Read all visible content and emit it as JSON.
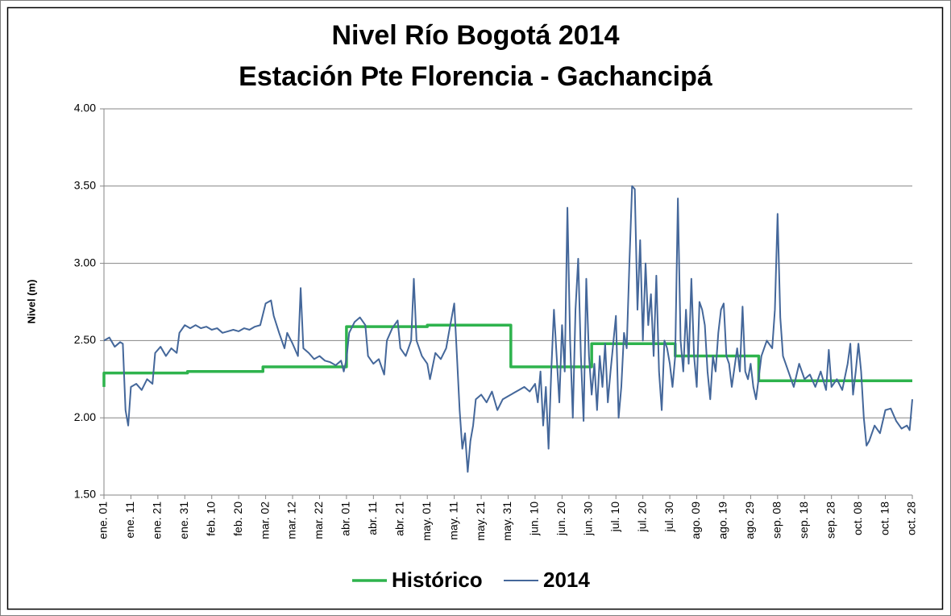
{
  "chart_data": {
    "type": "line",
    "title": "Nivel Río Bogotá 2014",
    "subtitle": "Estación Pte Florencia - Gachancipá",
    "y_label": "Nivel (m)",
    "xlim": [
      0,
      300
    ],
    "xticks": [
      {
        "value": 0,
        "label": "ene. 01"
      },
      {
        "value": 10,
        "label": "ene. 11"
      },
      {
        "value": 20,
        "label": "ene. 21"
      },
      {
        "value": 30,
        "label": "ene. 31"
      },
      {
        "value": 40,
        "label": "feb. 10"
      },
      {
        "value": 50,
        "label": "feb. 20"
      },
      {
        "value": 60,
        "label": "mar. 02"
      },
      {
        "value": 70,
        "label": "mar. 12"
      },
      {
        "value": 80,
        "label": "mar. 22"
      },
      {
        "value": 90,
        "label": "abr. 01"
      },
      {
        "value": 100,
        "label": "abr. 11"
      },
      {
        "value": 110,
        "label": "abr. 21"
      },
      {
        "value": 120,
        "label": "may. 01"
      },
      {
        "value": 130,
        "label": "may. 11"
      },
      {
        "value": 140,
        "label": "may. 21"
      },
      {
        "value": 150,
        "label": "may. 31"
      },
      {
        "value": 160,
        "label": "jun. 10"
      },
      {
        "value": 170,
        "label": "jun. 20"
      },
      {
        "value": 180,
        "label": "jun. 30"
      },
      {
        "value": 190,
        "label": "jul. 10"
      },
      {
        "value": 200,
        "label": "jul. 20"
      },
      {
        "value": 210,
        "label": "jul. 30"
      },
      {
        "value": 220,
        "label": "ago. 09"
      },
      {
        "value": 230,
        "label": "ago. 19"
      },
      {
        "value": 240,
        "label": "ago. 29"
      },
      {
        "value": 250,
        "label": "sep. 08"
      },
      {
        "value": 260,
        "label": "sep. 18"
      },
      {
        "value": 270,
        "label": "sep. 28"
      },
      {
        "value": 280,
        "label": "oct. 08"
      },
      {
        "value": 290,
        "label": "oct. 18"
      },
      {
        "value": 300,
        "label": "oct. 28"
      }
    ],
    "ylim": [
      1.5,
      4.0
    ],
    "yticks": [
      {
        "value": 1.5,
        "label": "1.50"
      },
      {
        "value": 2.0,
        "label": "2.00"
      },
      {
        "value": 2.5,
        "label": "2.50"
      },
      {
        "value": 3.0,
        "label": "3.00"
      },
      {
        "value": 3.5,
        "label": "3.50"
      },
      {
        "value": 4.0,
        "label": "4.00"
      }
    ],
    "grid": true,
    "legend": "bottom",
    "series": [
      {
        "name": "Histórico",
        "color": "#2eb34d",
        "width": 3.5,
        "x": [
          0,
          0,
          31,
          31,
          59,
          59,
          90,
          90,
          120,
          120,
          151,
          151,
          181,
          181,
          212,
          212,
          243,
          243,
          300
        ],
        "values": [
          2.2,
          2.29,
          2.29,
          2.3,
          2.3,
          2.33,
          2.33,
          2.59,
          2.59,
          2.6,
          2.6,
          2.33,
          2.33,
          2.48,
          2.48,
          2.4,
          2.4,
          2.24,
          2.24
        ]
      },
      {
        "name": "2014",
        "color": "#44679a",
        "width": 2,
        "x": [
          0,
          2,
          4,
          6,
          7,
          8,
          9,
          10,
          12,
          14,
          16,
          18,
          19,
          21,
          23,
          25,
          27,
          28,
          30,
          32,
          34,
          36,
          38,
          40,
          42,
          44,
          46,
          48,
          50,
          52,
          54,
          56,
          58,
          60,
          62,
          63,
          65,
          67,
          68,
          70,
          72,
          73,
          74,
          76,
          78,
          80,
          82,
          84,
          86,
          88,
          89,
          90,
          91,
          93,
          95,
          97,
          98,
          100,
          102,
          104,
          105,
          107,
          109,
          110,
          112,
          114,
          115,
          116,
          118,
          120,
          121,
          123,
          125,
          127,
          128,
          130,
          131,
          132,
          133,
          134,
          135,
          136,
          137,
          138,
          140,
          142,
          144,
          146,
          148,
          150,
          152,
          154,
          156,
          158,
          160,
          161,
          162,
          163,
          164,
          165,
          166,
          167,
          168,
          169,
          170,
          171,
          172,
          173,
          174,
          175,
          176,
          177,
          178,
          179,
          180,
          181,
          182,
          183,
          184,
          185,
          186,
          187,
          188,
          190,
          191,
          192,
          193,
          194,
          195,
          196,
          197,
          198,
          199,
          200,
          201,
          202,
          203,
          204,
          205,
          206,
          207,
          208,
          209,
          210,
          211,
          212,
          213,
          214,
          215,
          216,
          217,
          218,
          219,
          220,
          221,
          222,
          223,
          224,
          225,
          226,
          227,
          228,
          229,
          230,
          231,
          232,
          233,
          235,
          236,
          237,
          238,
          239,
          240,
          241,
          242,
          244,
          246,
          248,
          249,
          250,
          251,
          252,
          254,
          256,
          258,
          260,
          262,
          264,
          266,
          268,
          269,
          270,
          272,
          274,
          276,
          277,
          278,
          279,
          280,
          281,
          282,
          283,
          284,
          286,
          288,
          290,
          292,
          294,
          296,
          298,
          299,
          300
        ],
        "values": [
          2.5,
          2.52,
          2.46,
          2.49,
          2.48,
          2.05,
          1.95,
          2.2,
          2.22,
          2.18,
          2.25,
          2.22,
          2.42,
          2.46,
          2.4,
          2.45,
          2.42,
          2.55,
          2.6,
          2.58,
          2.6,
          2.58,
          2.59,
          2.57,
          2.58,
          2.55,
          2.56,
          2.57,
          2.56,
          2.58,
          2.57,
          2.59,
          2.6,
          2.74,
          2.76,
          2.66,
          2.55,
          2.45,
          2.55,
          2.48,
          2.4,
          2.84,
          2.45,
          2.42,
          2.38,
          2.4,
          2.37,
          2.36,
          2.34,
          2.37,
          2.3,
          2.38,
          2.55,
          2.62,
          2.65,
          2.6,
          2.4,
          2.35,
          2.38,
          2.28,
          2.5,
          2.58,
          2.63,
          2.45,
          2.4,
          2.5,
          2.9,
          2.5,
          2.4,
          2.35,
          2.25,
          2.42,
          2.38,
          2.45,
          2.55,
          2.74,
          2.4,
          2.05,
          1.8,
          1.9,
          1.65,
          1.85,
          1.95,
          2.12,
          2.15,
          2.1,
          2.17,
          2.05,
          2.12,
          2.14,
          2.16,
          2.18,
          2.2,
          2.17,
          2.22,
          2.1,
          2.3,
          1.95,
          2.2,
          1.8,
          2.3,
          2.7,
          2.4,
          2.1,
          2.6,
          2.3,
          3.36,
          2.5,
          2.0,
          2.7,
          3.03,
          2.4,
          1.98,
          2.9,
          2.4,
          2.15,
          2.35,
          2.05,
          2.4,
          2.2,
          2.48,
          2.1,
          2.3,
          2.66,
          2.0,
          2.2,
          2.55,
          2.45,
          3.0,
          3.5,
          3.48,
          2.7,
          3.15,
          2.5,
          3.0,
          2.6,
          2.8,
          2.4,
          2.92,
          2.3,
          2.05,
          2.5,
          2.45,
          2.35,
          2.2,
          2.4,
          3.42,
          2.5,
          2.3,
          2.7,
          2.35,
          2.9,
          2.4,
          2.2,
          2.75,
          2.7,
          2.6,
          2.3,
          2.12,
          2.4,
          2.3,
          2.55,
          2.7,
          2.74,
          2.4,
          2.35,
          2.2,
          2.45,
          2.3,
          2.72,
          2.3,
          2.25,
          2.35,
          2.2,
          2.12,
          2.4,
          2.5,
          2.45,
          2.7,
          3.32,
          2.65,
          2.4,
          2.3,
          2.2,
          2.35,
          2.25,
          2.28,
          2.2,
          2.3,
          2.18,
          2.44,
          2.2,
          2.25,
          2.18,
          2.35,
          2.48,
          2.15,
          2.3,
          2.48,
          2.3,
          2.0,
          1.82,
          1.85,
          1.95,
          1.9,
          2.05,
          2.06,
          1.98,
          1.93,
          1.95,
          1.92,
          2.12
        ]
      }
    ]
  }
}
